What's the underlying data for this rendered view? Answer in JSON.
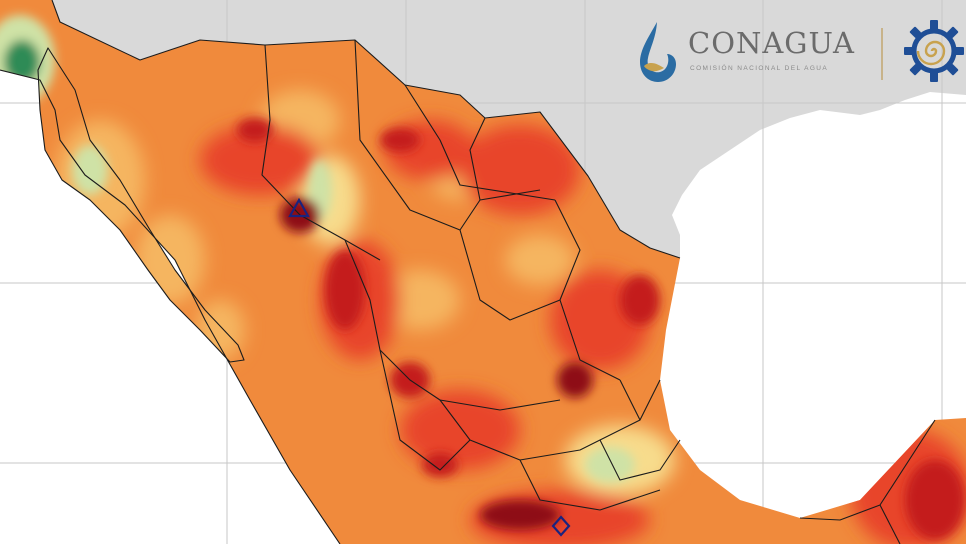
{
  "map": {
    "land_colors": {
      "ocean": "#ffffff",
      "neighbor_land": "#d9d9d9",
      "base_warm": "#f08a3c",
      "hot": "#e8452a",
      "very_hot": "#c41e1e",
      "extreme": "#8e0d14",
      "mild": "#f5b560",
      "cool": "#f7dc8c",
      "cooler": "#cfe2a6",
      "cold": "#2e8b57",
      "border": "#1c1c1c",
      "graticule": "#c7c7c7",
      "marker": "#1a237e"
    },
    "markers": [
      "triangle-marker",
      "diamond-marker"
    ]
  },
  "logo": {
    "name": "CONAGUA",
    "subtitle": "COMISIÓN NACIONAL DEL AGUA",
    "drop_color": "#2b6ca3",
    "accent_color": "#c8a24e",
    "gear_color": "#1f4e96"
  }
}
